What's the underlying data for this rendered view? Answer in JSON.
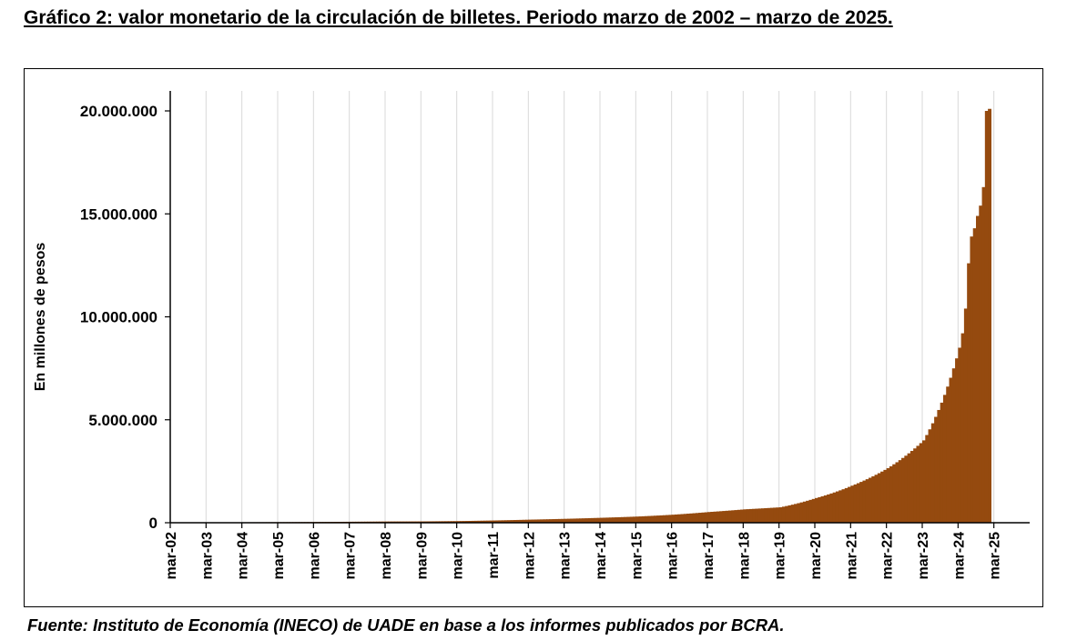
{
  "title": "Gráfico 2: valor monetario de la circulación de billetes. Periodo marzo de 2002 – marzo de 2025.",
  "source": "Fuente: Instituto de Economía (INECO) de UADE en base a los informes publicados por BCRA.",
  "colors": {
    "bar": "#954a0f",
    "grid": "#d9d9d9",
    "axis": "#000000"
  },
  "chart_data": {
    "type": "bar",
    "ylabel": "En millones de pesos",
    "xlabel": "",
    "ylim": [
      0,
      20000000
    ],
    "y_ticks": [
      {
        "value": 0,
        "label": "0"
      },
      {
        "value": 5000000,
        "label": "5.000.000"
      },
      {
        "value": 10000000,
        "label": "10.000.000"
      },
      {
        "value": 15000000,
        "label": "15.000.000"
      },
      {
        "value": 20000000,
        "label": "20.000.000"
      }
    ],
    "x_tick_labels": [
      "mar-02",
      "mar-03",
      "mar-04",
      "mar-05",
      "mar-06",
      "mar-07",
      "mar-08",
      "mar-09",
      "mar-10",
      "mar-11",
      "mar-12",
      "mar-13",
      "mar-14",
      "mar-15",
      "mar-16",
      "mar-17",
      "mar-18",
      "mar-19",
      "mar-20",
      "mar-21",
      "mar-22",
      "mar-23",
      "mar-24",
      "mar-25"
    ],
    "grid": "vertical",
    "legend": "none",
    "frequency": "monthly",
    "start": "mar-02",
    "annual_march_values": [
      {
        "x": "mar-02",
        "y": 10000
      },
      {
        "x": "mar-03",
        "y": 15000
      },
      {
        "x": "mar-04",
        "y": 22000
      },
      {
        "x": "mar-05",
        "y": 28000
      },
      {
        "x": "mar-06",
        "y": 37000
      },
      {
        "x": "mar-07",
        "y": 48000
      },
      {
        "x": "mar-08",
        "y": 60000
      },
      {
        "x": "mar-09",
        "y": 65000
      },
      {
        "x": "mar-10",
        "y": 80000
      },
      {
        "x": "mar-11",
        "y": 110000
      },
      {
        "x": "mar-12",
        "y": 150000
      },
      {
        "x": "mar-13",
        "y": 190000
      },
      {
        "x": "mar-14",
        "y": 240000
      },
      {
        "x": "mar-15",
        "y": 300000
      },
      {
        "x": "mar-16",
        "y": 390000
      },
      {
        "x": "mar-17",
        "y": 520000
      },
      {
        "x": "mar-18",
        "y": 650000
      },
      {
        "x": "mar-19",
        "y": 750000
      },
      {
        "x": "mar-20",
        "y": 1200000
      },
      {
        "x": "mar-21",
        "y": 1800000
      },
      {
        "x": "mar-22",
        "y": 2650000
      },
      {
        "x": "mar-23",
        "y": 4000000
      },
      {
        "x": "mar-24",
        "y": 8500000
      }
    ],
    "late_monthly_values": [
      {
        "x": "abr-24",
        "y": 9200000
      },
      {
        "x": "may-24",
        "y": 10400000
      },
      {
        "x": "jun-24",
        "y": 12600000
      },
      {
        "x": "jul-24",
        "y": 13900000
      },
      {
        "x": "ago-24",
        "y": 14300000
      },
      {
        "x": "sep-24",
        "y": 14900000
      },
      {
        "x": "oct-24",
        "y": 15400000
      },
      {
        "x": "nov-24",
        "y": 16300000
      },
      {
        "x": "dic-24",
        "y": 20000000
      },
      {
        "x": "ene-25",
        "y": 20100000
      }
    ]
  }
}
